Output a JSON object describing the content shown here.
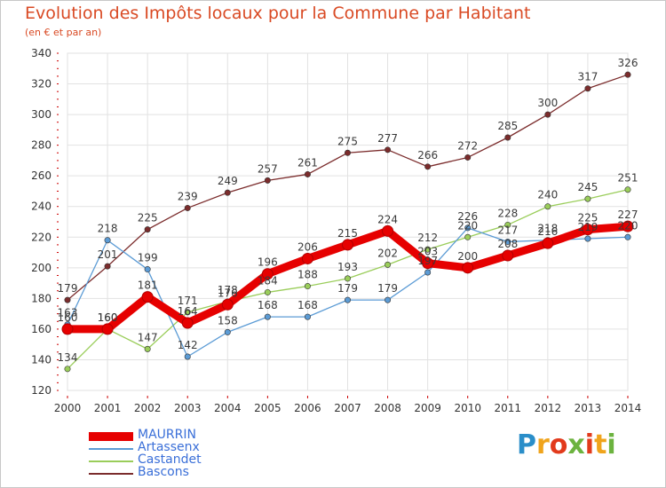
{
  "header": {
    "title": "Evolution des Impôts locaux pour la Commune par Habitant",
    "subtitle": "(en € et par an)"
  },
  "logo": {
    "text": "Proxiti",
    "letters": [
      "P",
      "r",
      "o",
      "x",
      "i",
      "t",
      "i"
    ],
    "colors": [
      "#2a8ec9",
      "#f0a41c",
      "#e23a1c",
      "#6cb33f",
      "#e23a1c",
      "#f0a41c",
      "#6cb33f"
    ]
  },
  "chart_data": {
    "type": "line",
    "title": "Evolution des Impôts locaux pour la Commune par Habitant",
    "subtitle": "(en € et par an)",
    "xlabel": "",
    "ylabel": "",
    "x": [
      2000,
      2001,
      2002,
      2003,
      2004,
      2005,
      2006,
      2007,
      2008,
      2009,
      2010,
      2011,
      2012,
      2013,
      2014
    ],
    "ylim": [
      120,
      340
    ],
    "yticks": [
      120,
      140,
      160,
      180,
      200,
      220,
      240,
      260,
      280,
      300,
      320,
      340
    ],
    "grid": true,
    "legend_position": "bottom-left",
    "series": [
      {
        "name": "MAURRIN",
        "color": "#e60000",
        "values": [
          160,
          160,
          181,
          164,
          176,
          196,
          206,
          215,
          224,
          203,
          200,
          208,
          216,
          225,
          227
        ]
      },
      {
        "name": "Artassenx",
        "color": "#5b9bd5",
        "values": [
          163,
          218,
          199,
          142,
          158,
          168,
          168,
          179,
          179,
          197,
          226,
          217,
          218,
          219,
          220
        ]
      },
      {
        "name": "Castandet",
        "color": "#9acd5a",
        "values": [
          134,
          160,
          147,
          171,
          178,
          184,
          188,
          193,
          202,
          212,
          220,
          228,
          240,
          245,
          251
        ]
      },
      {
        "name": "Bascons",
        "color": "#7b2c2c",
        "values": [
          179,
          201,
          225,
          239,
          249,
          257,
          261,
          275,
          277,
          266,
          272,
          285,
          300,
          317,
          326
        ]
      }
    ]
  }
}
